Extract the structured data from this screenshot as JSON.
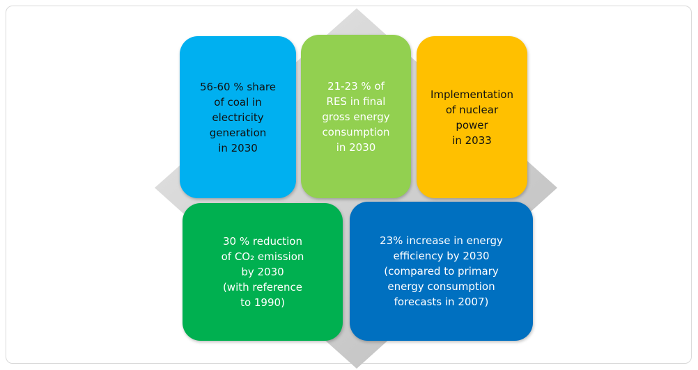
{
  "boxes": [
    {
      "lines": [
        "56-60 % share",
        "of coal in",
        "electricity",
        "generation",
        "in 2030"
      ]
    },
    {
      "lines": [
        "21-23 % of",
        "RES in final",
        "gross energy",
        "consumption",
        "in 2030"
      ]
    },
    {
      "lines": [
        "Implementation",
        "of nuclear",
        "power",
        "in 2033"
      ]
    },
    {
      "lines": [
        "30 % reduction",
        "of CO₂ emission",
        "by 2030",
        "(with reference",
        "to 1990)"
      ]
    },
    {
      "lines": [
        "23% increase in energy",
        "efficiency by 2030",
        "(compared to primary",
        "energy consumption",
        "forecasts in 2007)"
      ]
    }
  ]
}
